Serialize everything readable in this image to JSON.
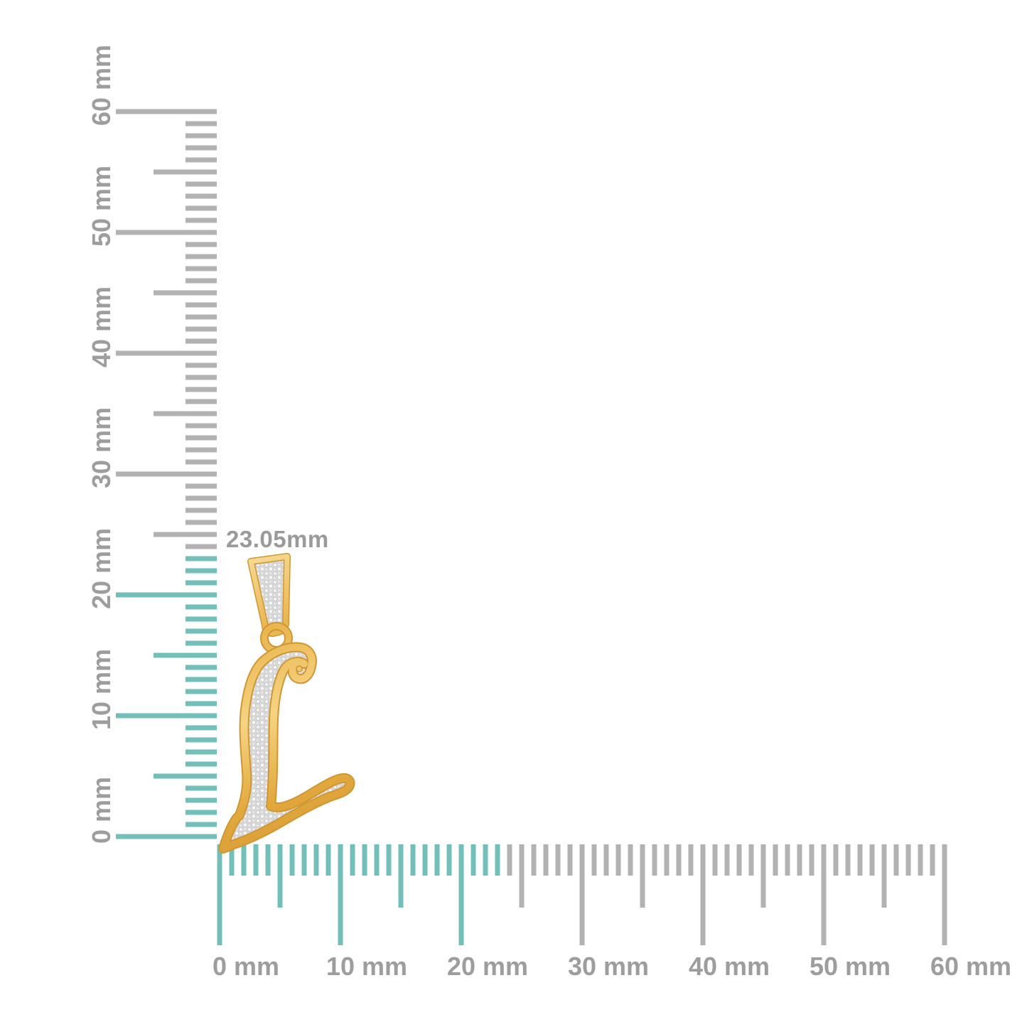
{
  "annotation": {
    "size_label": "23.05mm",
    "measured_size_mm": 23.05
  },
  "rulers": {
    "unit": "mm",
    "range_mm": [
      0,
      60
    ],
    "tick_interval_mm": 1,
    "mid_interval_mm": 5,
    "major_interval_mm": 10,
    "highlighted_range_mm": [
      0,
      23
    ],
    "vertical_labels": [
      "0 mm",
      "10 mm",
      "20 mm",
      "30 mm",
      "40 mm",
      "50 mm",
      "60 mm"
    ],
    "horizontal_labels": [
      "0 mm",
      "10 mm",
      "20 mm",
      "30 mm",
      "40 mm",
      "50 mm",
      "60 mm"
    ]
  },
  "pendant": {
    "letter": "L",
    "subject": "Yellow gold script initial 'L' pendant with pave diamonds and tapered diamond-set bail"
  },
  "colors": {
    "background": "#ffffff",
    "highlight_teal": "#72bfb9",
    "tick_gray": "#b2b2b2",
    "label_gray": "#9d9d9d",
    "annotation_gray": "#9a9a9a",
    "gold_dark": "#cf9733",
    "gold_mid": "#e9b54e",
    "gold_light": "#f7dd9b",
    "pave_silver": "#d9d9d9"
  }
}
